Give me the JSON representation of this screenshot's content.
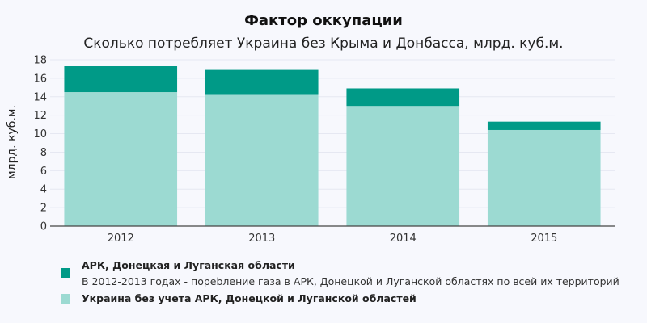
{
  "chart_data": {
    "type": "bar",
    "stacked": true,
    "title": "Фактор оккупации",
    "subtitle": "Сколько потребляет Украина без Крыма и Донбасса, млрд. куб.м.",
    "xlabel": "",
    "ylabel": "млрд. куб.м.",
    "categories": [
      "2012",
      "2013",
      "2014",
      "2015"
    ],
    "ylim": [
      0,
      18
    ],
    "yticks": [
      0,
      2,
      4,
      6,
      8,
      10,
      12,
      14,
      16,
      18
    ],
    "grid": true,
    "legend_position": "bottom-left",
    "series": [
      {
        "name": "Украина без учета АРК, Донецкой и Луганской областей",
        "values": [
          14.5,
          14.2,
          13.0,
          10.4
        ],
        "color": "#9cdad2"
      },
      {
        "name": "АРК, Донецкая и Луганская области",
        "description": "В 2012-2013 годах - порebление газа в АРК, Донецкой и Луганской областях по всей их территорий",
        "values": [
          2.8,
          2.7,
          1.9,
          0.9
        ],
        "color": "#009a87"
      }
    ]
  }
}
